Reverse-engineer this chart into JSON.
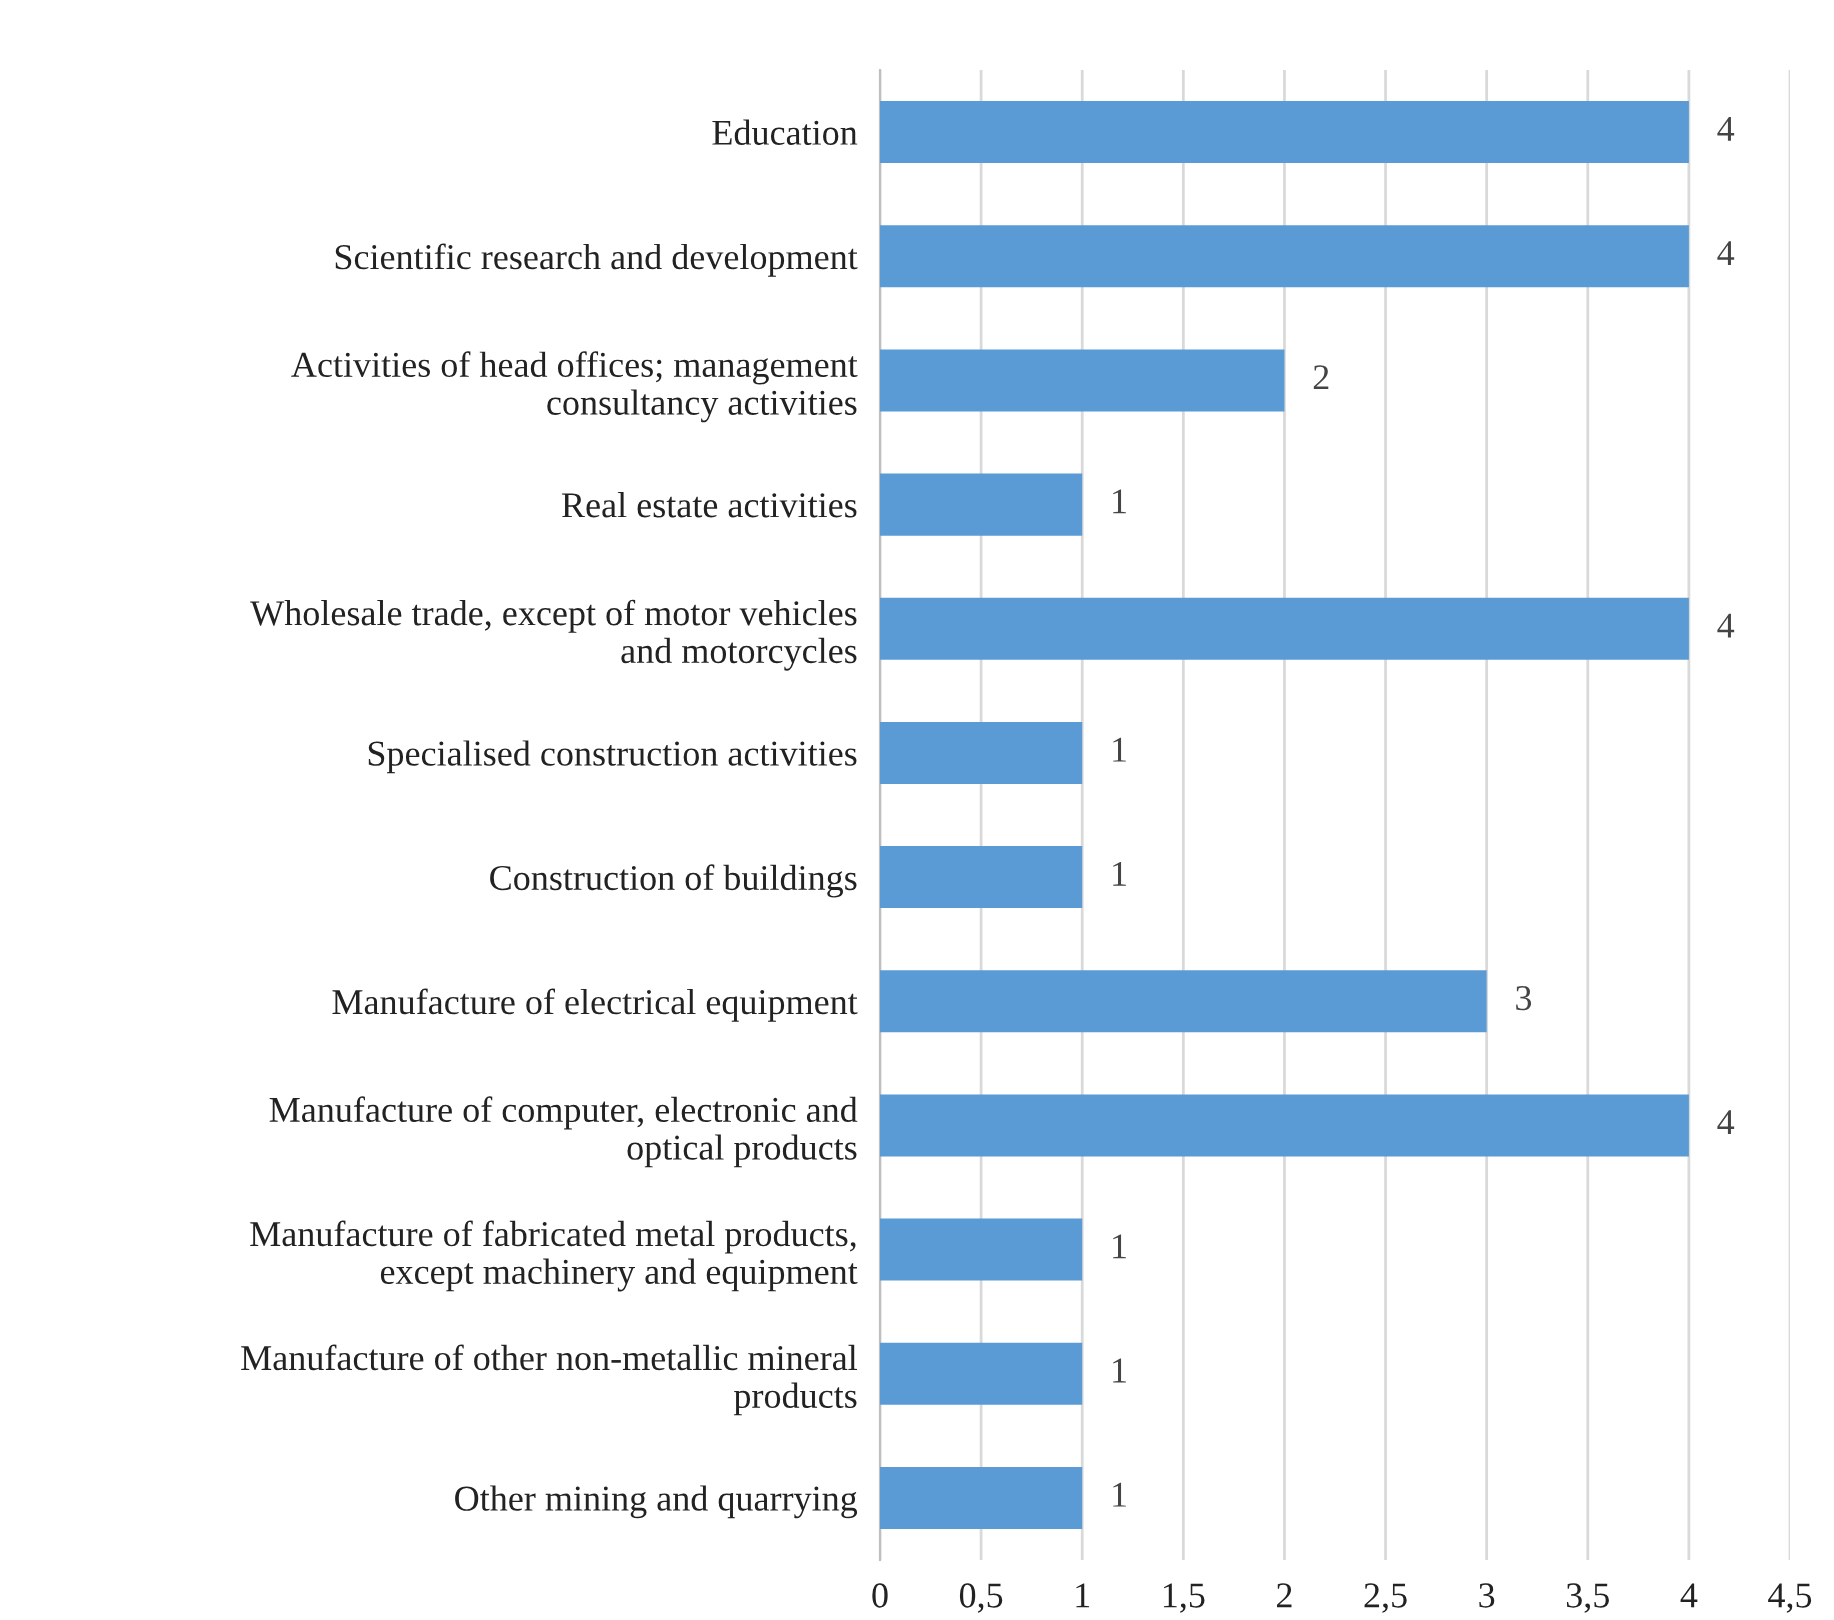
{
  "chart_data": {
    "type": "bar",
    "orientation": "horizontal",
    "categories": [
      "Education",
      "Scientific research and development",
      "Activities of head offices; management\nconsultancy activities",
      "Real estate activities",
      "Wholesale trade, except of motor vehicles\nand motorcycles",
      "Specialised construction activities",
      "Construction of buildings",
      "Manufacture of electrical equipment",
      "Manufacture of computer, electronic and\noptical products",
      "Manufacture of fabricated metal products,\nexcept machinery and equipment",
      "Manufacture of other non-metallic mineral\nproducts",
      "Other mining and quarrying"
    ],
    "values": [
      4,
      4,
      2,
      1,
      4,
      1,
      1,
      3,
      4,
      1,
      1,
      1
    ],
    "color": "#5b9bd5",
    "xlim": [
      0,
      4.5
    ],
    "xticks": [
      0,
      {
        "value": 0.5,
        "label": "0,5"
      },
      1,
      {
        "value": 1.5,
        "label": "1,5"
      },
      2,
      {
        "value": 2.5,
        "label": "2,5"
      },
      3,
      {
        "value": 3.5,
        "label": "3,5"
      },
      4,
      {
        "value": 4.5,
        "label": "4,5"
      }
    ],
    "grid": "x",
    "data_labels": true,
    "legend": false
  }
}
